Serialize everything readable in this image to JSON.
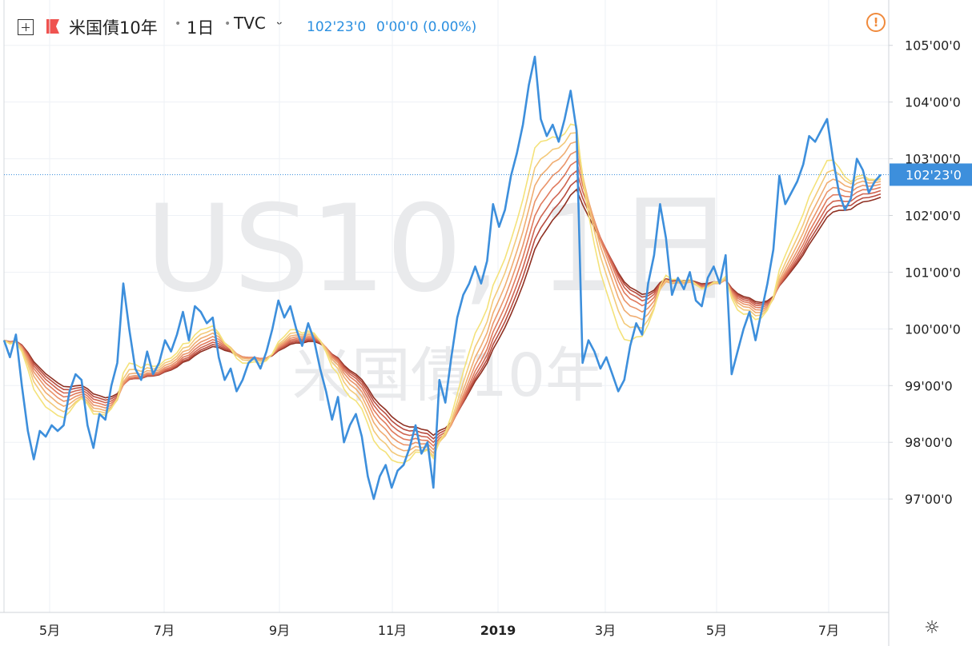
{
  "header": {
    "symbol": "米国債10年",
    "interval": "1日",
    "source": "TVC",
    "dropdown_icon": "chevron-down-icon",
    "last_price": "102'23'0",
    "change": "0'00'0 (0.00%)",
    "warning_icon": "warning-circle-icon"
  },
  "watermark": {
    "line1": "US10, 1日",
    "line2": "米国債10年"
  },
  "colors": {
    "price_line": "#3d8fdc",
    "ribbon": [
      "#f4e27a",
      "#f3c97a",
      "#f0ad72",
      "#ea946a",
      "#e07a5d",
      "#cf6450",
      "#b94c3f",
      "#8f3022"
    ]
  },
  "chart_data": {
    "type": "line",
    "xlabel": "",
    "ylabel": "",
    "x_ticks": [
      "5月",
      "7月",
      "9月",
      "11月",
      "2019",
      "3月",
      "5月",
      "7月"
    ],
    "y_ticks": [
      "97'00'0",
      "98'00'0",
      "99'00'0",
      "100'00'0",
      "101'00'0",
      "102'00'0",
      "103'00'0",
      "104'00'0",
      "105'00'0"
    ],
    "y_tick_values": [
      97,
      98,
      99,
      100,
      101,
      102,
      103,
      104,
      105
    ],
    "ylim": [
      95.0,
      105.8
    ],
    "x_range": [
      "2018-04",
      "2019-08"
    ],
    "last_value_label": "102'23'0",
    "last_value": 102.72,
    "grid": true,
    "series": [
      {
        "values": [
          99.8,
          99.5,
          99.9,
          99.0,
          98.2,
          97.7,
          98.2,
          98.1,
          98.3,
          98.2,
          98.3,
          98.9,
          99.2,
          99.1,
          98.3,
          97.9,
          98.5,
          98.4,
          99.0,
          99.4,
          100.8,
          100.0,
          99.3,
          99.1,
          99.6,
          99.2,
          99.4,
          99.8,
          99.6,
          99.9,
          100.3,
          99.8,
          100.4,
          100.3,
          100.1,
          100.2,
          99.5,
          99.1,
          99.3,
          98.9,
          99.1,
          99.4,
          99.5,
          99.3,
          99.6,
          100.0,
          100.5,
          100.2,
          100.4,
          100.0,
          99.7,
          100.1,
          99.8,
          99.3,
          98.9,
          98.4,
          98.8,
          98.0,
          98.3,
          98.5,
          98.1,
          97.4,
          97.0,
          97.4,
          97.6,
          97.2,
          97.5,
          97.6,
          97.9,
          98.3,
          97.8,
          98.0,
          97.2,
          99.1,
          98.7,
          99.5,
          100.2,
          100.6,
          100.8,
          101.1,
          100.8,
          101.2,
          102.2,
          101.8,
          102.1,
          102.7,
          103.1,
          103.6,
          104.3,
          104.8,
          103.7,
          103.4,
          103.6,
          103.3,
          103.7,
          104.2,
          103.5,
          99.4,
          99.8,
          99.6,
          99.3,
          99.5,
          99.2,
          98.9,
          99.1,
          99.7,
          100.1,
          99.9,
          100.8,
          101.3,
          102.2,
          101.6,
          100.6,
          100.9,
          100.7,
          101.0,
          100.5,
          100.4,
          100.9,
          101.1,
          100.8,
          101.3,
          99.2,
          99.6,
          100.0,
          100.3,
          99.8,
          100.3,
          100.8,
          101.4,
          102.7,
          102.2,
          102.4,
          102.6,
          102.9,
          103.4,
          103.3,
          103.5,
          103.7,
          103.0,
          102.4,
          102.1,
          102.3,
          103.0,
          102.8,
          102.4,
          102.6,
          102.72
        ]
      }
    ],
    "ribbon_periods": [
      8,
      10,
      12,
      14,
      16,
      18,
      20,
      22
    ]
  }
}
